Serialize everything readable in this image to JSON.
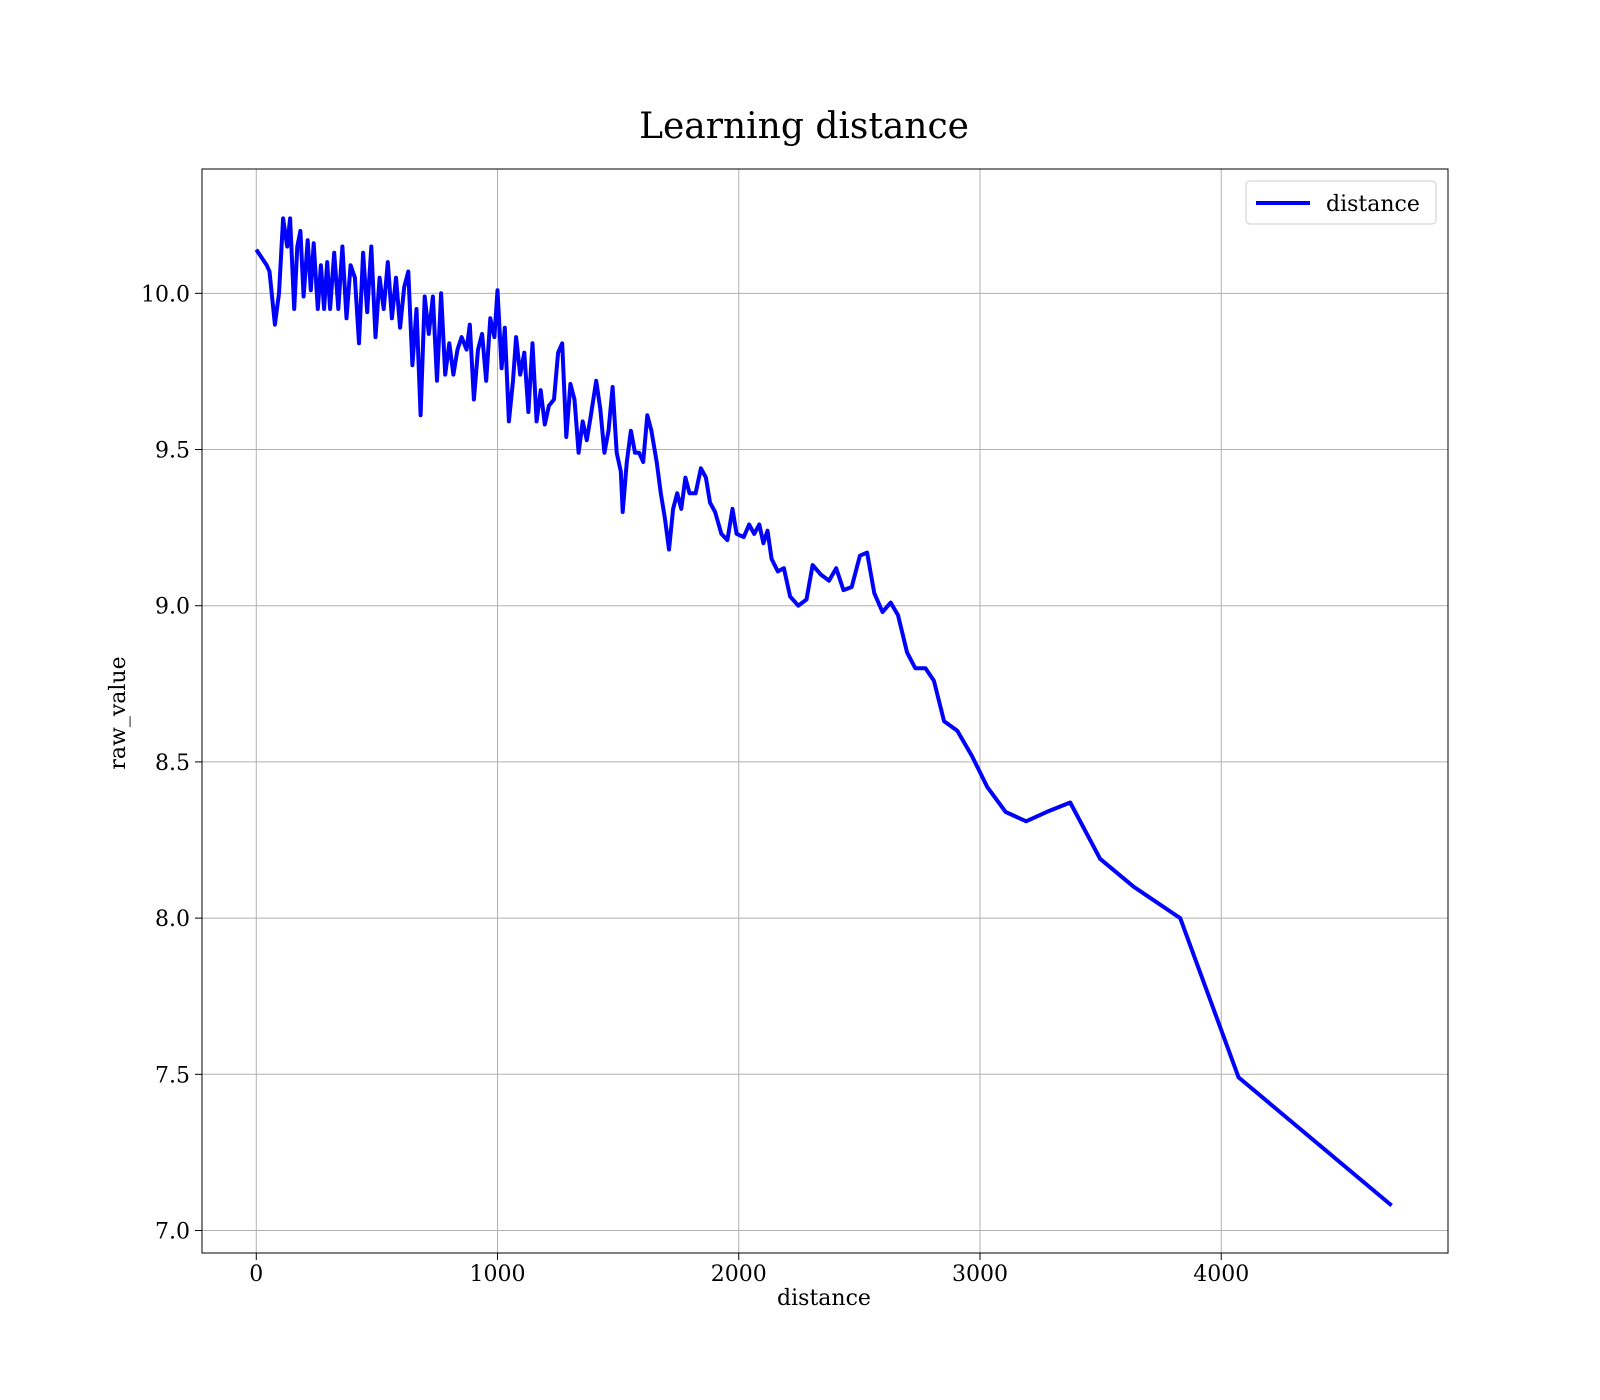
{
  "chart_data": {
    "type": "line",
    "title": "Learning distance",
    "xlabel": "distance",
    "ylabel": "raw_value",
    "x": [
      0,
      43,
      55,
      77,
      94,
      111,
      128,
      140,
      157,
      170,
      183,
      196,
      213,
      226,
      238,
      255,
      268,
      281,
      294,
      306,
      323,
      340,
      357,
      374,
      391,
      409,
      426,
      443,
      460,
      477,
      494,
      511,
      528,
      545,
      562,
      579,
      596,
      613,
      630,
      647,
      664,
      681,
      698,
      715,
      732,
      749,
      766,
      783,
      800,
      817,
      834,
      851,
      872,
      885,
      902,
      919,
      936,
      953,
      970,
      987,
      1000,
      1017,
      1030,
      1047,
      1064,
      1077,
      1094,
      1111,
      1128,
      1145,
      1162,
      1179,
      1196,
      1213,
      1234,
      1251,
      1268,
      1285,
      1302,
      1319,
      1336,
      1353,
      1370,
      1387,
      1409,
      1426,
      1443,
      1460,
      1477,
      1494,
      1511,
      1519,
      1536,
      1553,
      1570,
      1587,
      1604,
      1621,
      1638,
      1660,
      1677,
      1694,
      1711,
      1728,
      1745,
      1762,
      1779,
      1796,
      1821,
      1843,
      1864,
      1881,
      1902,
      1928,
      1953,
      1974,
      1991,
      2021,
      2043,
      2064,
      2085,
      2102,
      2119,
      2136,
      2162,
      2187,
      2213,
      2247,
      2281,
      2306,
      2340,
      2374,
      2404,
      2434,
      2468,
      2502,
      2532,
      2562,
      2596,
      2630,
      2660,
      2698,
      2732,
      2774,
      2809,
      2851,
      2906,
      2966,
      3030,
      3106,
      3191,
      3277,
      3374,
      3498,
      3638,
      3830,
      4072,
      4706
    ],
    "series": [
      {
        "name": "distance",
        "color": "#0000ff",
        "values": [
          10.14,
          10.09,
          10.07,
          9.9,
          10.0,
          10.24,
          10.15,
          10.24,
          9.95,
          10.15,
          10.2,
          9.99,
          10.17,
          10.01,
          10.16,
          9.95,
          10.09,
          9.95,
          10.1,
          9.95,
          10.13,
          9.95,
          10.15,
          9.92,
          10.09,
          10.05,
          9.84,
          10.13,
          9.94,
          10.15,
          9.86,
          10.05,
          9.95,
          10.1,
          9.92,
          10.05,
          9.89,
          10.02,
          10.07,
          9.77,
          9.95,
          9.61,
          9.99,
          9.87,
          9.99,
          9.72,
          10.0,
          9.74,
          9.84,
          9.74,
          9.82,
          9.86,
          9.82,
          9.9,
          9.66,
          9.82,
          9.87,
          9.72,
          9.92,
          9.86,
          10.01,
          9.76,
          9.89,
          9.59,
          9.72,
          9.86,
          9.74,
          9.81,
          9.62,
          9.84,
          9.59,
          9.69,
          9.58,
          9.64,
          9.66,
          9.81,
          9.84,
          9.54,
          9.71,
          9.66,
          9.49,
          9.59,
          9.53,
          9.61,
          9.72,
          9.63,
          9.49,
          9.56,
          9.7,
          9.49,
          9.43,
          9.3,
          9.46,
          9.56,
          9.49,
          9.49,
          9.46,
          9.61,
          9.56,
          9.46,
          9.36,
          9.28,
          9.18,
          9.31,
          9.36,
          9.31,
          9.41,
          9.36,
          9.36,
          9.44,
          9.41,
          9.33,
          9.3,
          9.23,
          9.21,
          9.31,
          9.23,
          9.22,
          9.26,
          9.23,
          9.26,
          9.2,
          9.24,
          9.15,
          9.11,
          9.12,
          9.03,
          9.0,
          9.02,
          9.13,
          9.1,
          9.08,
          9.12,
          9.05,
          9.06,
          9.16,
          9.17,
          9.04,
          8.98,
          9.01,
          8.97,
          8.85,
          8.8,
          8.8,
          8.76,
          8.63,
          8.6,
          8.52,
          8.42,
          8.34,
          8.31,
          8.34,
          8.37,
          8.19,
          8.1,
          8.0,
          7.49,
          7.08
        ]
      }
    ],
    "xlim": [
      -225,
      4940
    ],
    "ylim": [
      6.928,
      10.398
    ],
    "xticks": [
      0,
      1000,
      2000,
      3000,
      4000
    ],
    "yticks": [
      {
        "value": 7,
        "label": "7.0"
      },
      {
        "value": 7.5,
        "label": "7.5"
      },
      {
        "value": 8,
        "label": "8.0"
      },
      {
        "value": 8.5,
        "label": "8.5"
      },
      {
        "value": 9,
        "label": "9.0"
      },
      {
        "value": 9.5,
        "label": "9.5"
      },
      {
        "value": 10,
        "label": "10.0"
      }
    ],
    "grid": true,
    "legend": "upper right"
  }
}
